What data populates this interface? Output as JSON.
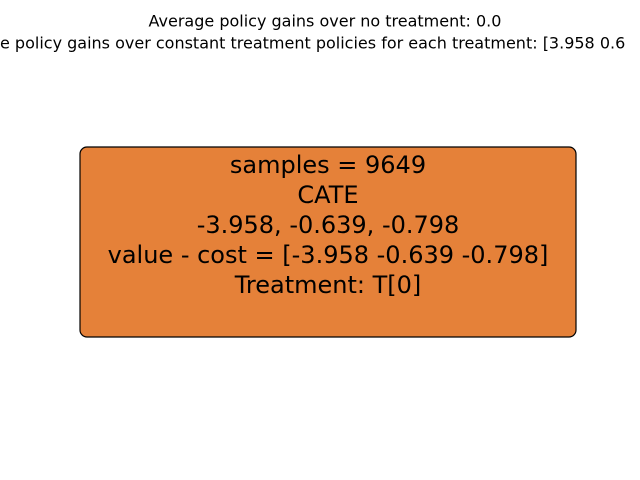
{
  "header": {
    "lines": [
      "Average policy gains over no treatment: 0.0",
      "e policy gains over constant treatment policies for each treatment: [3.958 0.6"
    ]
  },
  "nodes": [
    {
      "lines": [
        "samples = 9649",
        "CATE",
        "-3.958, -0.639, -0.798",
        "value - cost = [-3.958 -0.639 -0.798]",
        "Treatment: T[0]"
      ]
    }
  ]
}
